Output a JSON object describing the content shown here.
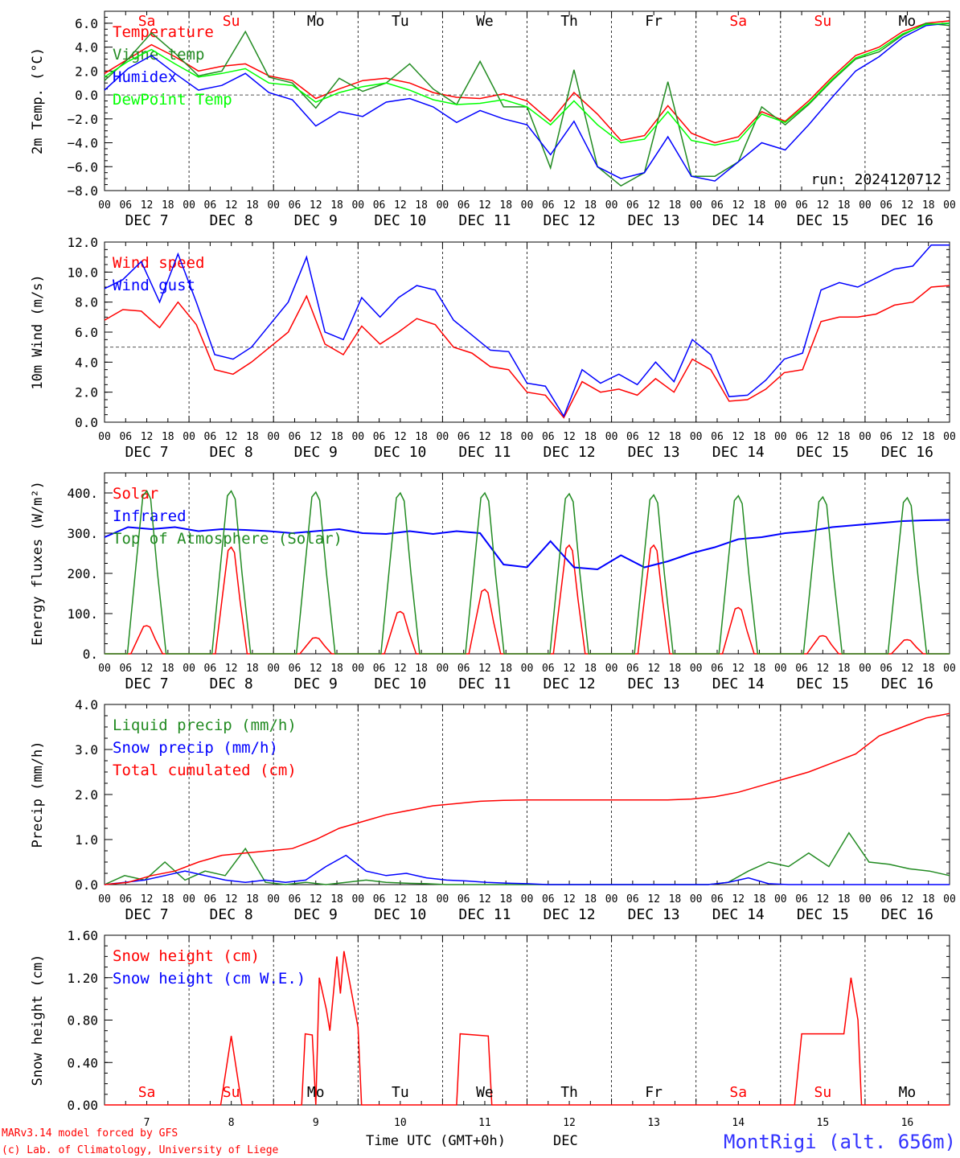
{
  "footer": {
    "credit_line1": "MARv3.14 model forced by GFS",
    "credit_line2": "(c) Lab. of Climatology, University of Liege",
    "xlabel": "Time UTC (GMT+0h)",
    "xlabel_unit": "DEC",
    "station": "MontRigi (alt. 656m)"
  },
  "colors": {
    "red": "#ff0000",
    "green": "#228b22",
    "blue": "#0000ff",
    "lightgreen": "#00ff00",
    "accent": "#3333ff"
  },
  "day_names": [
    "Sa",
    "Su",
    "Mo",
    "Tu",
    "We",
    "Th",
    "Fr",
    "Sa",
    "Su",
    "Mo"
  ],
  "day_name_colors": [
    "red",
    "red",
    "black",
    "black",
    "black",
    "black",
    "black",
    "red",
    "red",
    "black"
  ],
  "date_labels": [
    "DEC  7",
    "DEC  8",
    "DEC  9",
    "DEC 10",
    "DEC 11",
    "DEC 12",
    "DEC 13",
    "DEC 14",
    "DEC 15",
    "DEC 16"
  ],
  "hour_ticks": [
    "00",
    "06",
    "12",
    "18"
  ],
  "hour_end": "00",
  "bottom_day_numbers": [
    "7",
    "8",
    "9",
    "10",
    "11",
    "12",
    "13",
    "14",
    "15",
    "16"
  ],
  "run_label": "run: 2024120712",
  "chart_data": [
    {
      "type": "line",
      "ylabel": "2m Temp. (°C)",
      "ylim": [
        -8,
        7
      ],
      "yticks": [
        "−8.0",
        "−6.0",
        "−4.0",
        "−2.0",
        "0.0",
        "2.0",
        "4.0",
        "6.0"
      ],
      "ytick_values": [
        -8,
        -6,
        -4,
        -2,
        0,
        2,
        4,
        6
      ],
      "ref_line": 0,
      "x_hours": [
        0,
        6,
        12,
        18,
        24,
        30,
        36,
        42,
        48,
        54,
        60,
        66,
        72,
        78,
        84,
        90,
        96,
        102,
        108,
        114,
        120,
        126,
        132,
        138,
        144,
        150,
        156,
        162,
        168,
        174,
        180,
        186,
        192,
        198,
        204,
        210,
        216,
        222,
        228,
        234,
        240
      ],
      "series": [
        {
          "name": "Temperature",
          "color": "red",
          "values": [
            1.8,
            3.0,
            4.2,
            3.2,
            2.0,
            2.4,
            2.6,
            1.6,
            1.2,
            -0.3,
            0.5,
            1.2,
            1.4,
            1.0,
            0.2,
            -0.2,
            -0.3,
            0.1,
            -0.5,
            -2.2,
            0.2,
            -1.6,
            -3.8,
            -3.4,
            -0.9,
            -3.2,
            -4.0,
            -3.5,
            -1.4,
            -2.2,
            -0.5,
            1.5,
            3.3,
            4.0,
            5.3,
            6.0,
            6.2
          ]
        },
        {
          "name": "Vigne temp",
          "color": "green",
          "values": [
            1.2,
            3.0,
            5.2,
            3.5,
            1.6,
            2.0,
            5.3,
            1.5,
            1.0,
            -1.1,
            1.4,
            0.3,
            1.0,
            2.6,
            0.5,
            -0.8,
            2.8,
            -1.0,
            -1.0,
            -6.1,
            2.1,
            -6.0,
            -7.6,
            -6.5,
            1.1,
            -6.8,
            -6.8,
            -5.6,
            -1.0,
            -2.5,
            -0.8,
            1.2,
            3.0,
            3.6,
            5.0,
            6.0,
            5.8
          ]
        },
        {
          "name": "Humidex",
          "color": "blue",
          "values": [
            0.4,
            2.2,
            3.3,
            1.8,
            0.4,
            0.8,
            1.8,
            0.2,
            -0.4,
            -2.6,
            -1.4,
            -1.8,
            -0.6,
            -0.3,
            -1.0,
            -2.3,
            -1.3,
            -2.0,
            -2.5,
            -5.0,
            -2.2,
            -6.0,
            -7.0,
            -6.5,
            -3.5,
            -6.8,
            -7.2,
            -5.6,
            -4.0,
            -4.6,
            -2.5,
            -0.2,
            2.0,
            3.2,
            4.8,
            5.8,
            6.0
          ]
        },
        {
          "name": "DewPoint Temp",
          "color": "lightgreen",
          "values": [
            1.5,
            2.8,
            3.8,
            2.6,
            1.5,
            1.8,
            2.2,
            1.0,
            0.8,
            -0.6,
            0.2,
            0.7,
            1.0,
            0.4,
            -0.4,
            -0.8,
            -0.7,
            -0.4,
            -1.0,
            -2.5,
            -0.5,
            -2.5,
            -4.0,
            -3.7,
            -1.4,
            -3.8,
            -4.2,
            -3.8,
            -1.6,
            -2.3,
            -0.7,
            1.3,
            3.1,
            3.8,
            5.1,
            5.9,
            6.0
          ]
        }
      ]
    },
    {
      "type": "line",
      "ylabel": "10m Wind (m/s)",
      "ylim": [
        0,
        12
      ],
      "yticks": [
        "0.0",
        "2.0",
        "4.0",
        "6.0",
        "8.0",
        "10.0",
        "12.0"
      ],
      "ytick_values": [
        0,
        2,
        4,
        6,
        8,
        10,
        12
      ],
      "ref_line": 5,
      "series": [
        {
          "name": "Wind speed",
          "color": "red",
          "values": [
            6.8,
            7.5,
            7.4,
            6.3,
            8.0,
            6.5,
            3.5,
            3.2,
            4.0,
            5.0,
            6.0,
            8.4,
            5.2,
            4.5,
            6.4,
            5.2,
            6.0,
            6.9,
            6.5,
            5.0,
            4.6,
            3.7,
            3.5,
            2.0,
            1.8,
            0.3,
            2.7,
            2.0,
            2.2,
            1.8,
            2.9,
            2.0,
            4.2,
            3.5,
            1.4,
            1.5,
            2.2,
            3.3,
            3.5,
            6.7,
            7.0,
            7.0,
            7.2,
            7.8,
            8.0,
            9.0,
            9.1
          ]
        },
        {
          "name": "Wind gust",
          "color": "blue",
          "values": [
            8.9,
            9.5,
            10.7,
            8.0,
            11.2,
            8.0,
            4.5,
            4.2,
            5.0,
            6.5,
            8.0,
            11.0,
            6.0,
            5.5,
            8.3,
            7.0,
            8.3,
            9.1,
            8.8,
            6.8,
            5.8,
            4.8,
            4.7,
            2.6,
            2.4,
            0.4,
            3.5,
            2.6,
            3.2,
            2.5,
            4.0,
            2.7,
            5.5,
            4.5,
            1.7,
            1.8,
            2.8,
            4.2,
            4.6,
            8.8,
            9.3,
            9.0,
            9.6,
            10.2,
            10.4,
            11.8,
            11.8
          ]
        }
      ]
    },
    {
      "type": "line",
      "ylabel": "Energy fluxes (W/m²)",
      "ylim": [
        0,
        450
      ],
      "yticks": [
        "0.",
        "100.",
        "200.",
        "300.",
        "400."
      ],
      "ytick_values": [
        0,
        100,
        200,
        300,
        400
      ],
      "series": [
        {
          "name": "Solar",
          "color": "red",
          "peaks": [
            70,
            265,
            40,
            105,
            160,
            270,
            270,
            115,
            45,
            35
          ]
        },
        {
          "name": "Infrared",
          "color": "blue",
          "values": [
            290,
            315,
            310,
            315,
            305,
            310,
            308,
            305,
            300,
            305,
            310,
            300,
            298,
            305,
            298,
            305,
            300,
            222,
            215,
            280,
            215,
            210,
            245,
            215,
            230,
            250,
            265,
            285,
            290,
            300,
            305,
            315,
            320,
            325,
            330,
            332,
            333
          ]
        },
        {
          "name": "Top of Atmosphere (Solar)",
          "color": "green",
          "peaks": [
            405,
            405,
            402,
            400,
            400,
            398,
            395,
            393,
            390,
            388
          ]
        }
      ]
    },
    {
      "type": "line",
      "ylabel": "Precip (mm/h)",
      "ylim": [
        0,
        4
      ],
      "yticks": [
        "0.0",
        "1.0",
        "2.0",
        "3.0",
        "4.0"
      ],
      "ytick_values": [
        0,
        1,
        2,
        3,
        4
      ],
      "series": [
        {
          "name": "Liquid precip (mm/h)",
          "color": "green",
          "values": [
            0,
            0.2,
            0.1,
            0.5,
            0.1,
            0.3,
            0.2,
            0.8,
            0.05,
            0,
            0.05,
            0,
            0.05,
            0.1,
            0.05,
            0.03,
            0.02,
            0,
            0,
            0,
            0,
            0,
            0,
            0,
            0,
            0,
            0,
            0,
            0,
            0,
            0,
            0.05,
            0.3,
            0.5,
            0.4,
            0.7,
            0.4,
            1.15,
            0.5,
            0.45,
            0.35,
            0.3,
            0.2
          ]
        },
        {
          "name": "Snow precip (mm/h)",
          "color": "blue",
          "values": [
            0,
            0.05,
            0.1,
            0.2,
            0.3,
            0.2,
            0.1,
            0.05,
            0.1,
            0.05,
            0.1,
            0.4,
            0.65,
            0.3,
            0.2,
            0.25,
            0.15,
            0.1,
            0.08,
            0.05,
            0.03,
            0.02,
            0,
            0,
            0,
            0,
            0,
            0,
            0,
            0,
            0,
            0.05,
            0.15,
            0.02,
            0,
            0,
            0,
            0,
            0,
            0,
            0,
            0,
            0
          ]
        },
        {
          "name": "Total cumulated (cm)",
          "color": "red",
          "values": [
            0,
            0.05,
            0.2,
            0.3,
            0.5,
            0.65,
            0.7,
            0.75,
            0.8,
            1.0,
            1.25,
            1.4,
            1.55,
            1.65,
            1.75,
            1.8,
            1.85,
            1.87,
            1.88,
            1.88,
            1.88,
            1.88,
            1.88,
            1.88,
            1.88,
            1.9,
            1.95,
            2.05,
            2.2,
            2.35,
            2.5,
            2.7,
            2.9,
            3.3,
            3.5,
            3.7,
            3.8
          ]
        }
      ]
    },
    {
      "type": "line",
      "ylabel": "Snow height (cm)",
      "ylim": [
        0,
        1.6
      ],
      "yticks": [
        "0.00",
        "0.40",
        "0.80",
        "1.20",
        "1.60"
      ],
      "ytick_values": [
        0,
        0.4,
        0.8,
        1.2,
        1.6
      ],
      "series": [
        {
          "name": "Snow height (cm)",
          "color": "red",
          "points": [
            [
              0,
              0
            ],
            [
              33,
              0
            ],
            [
              36,
              0.65
            ],
            [
              39,
              0
            ],
            [
              56,
              0
            ],
            [
              57,
              0.67
            ],
            [
              59,
              0.66
            ],
            [
              60,
              0
            ],
            [
              61,
              1.2
            ],
            [
              63,
              0.9
            ],
            [
              64,
              0.7
            ],
            [
              66,
              1.4
            ],
            [
              67,
              1.05
            ],
            [
              68,
              1.45
            ],
            [
              72,
              0.73
            ],
            [
              73,
              0
            ],
            [
              100,
              0
            ],
            [
              101,
              0.67
            ],
            [
              109,
              0.65
            ],
            [
              110,
              0
            ],
            [
              196,
              0
            ],
            [
              198,
              0.67
            ],
            [
              210,
              0.67
            ],
            [
              212,
              1.2
            ],
            [
              214,
              0.8
            ],
            [
              215,
              0
            ],
            [
              240,
              0
            ]
          ]
        },
        {
          "name": "Snow height (cm W.E.)",
          "color": "blue",
          "points": []
        }
      ]
    }
  ]
}
